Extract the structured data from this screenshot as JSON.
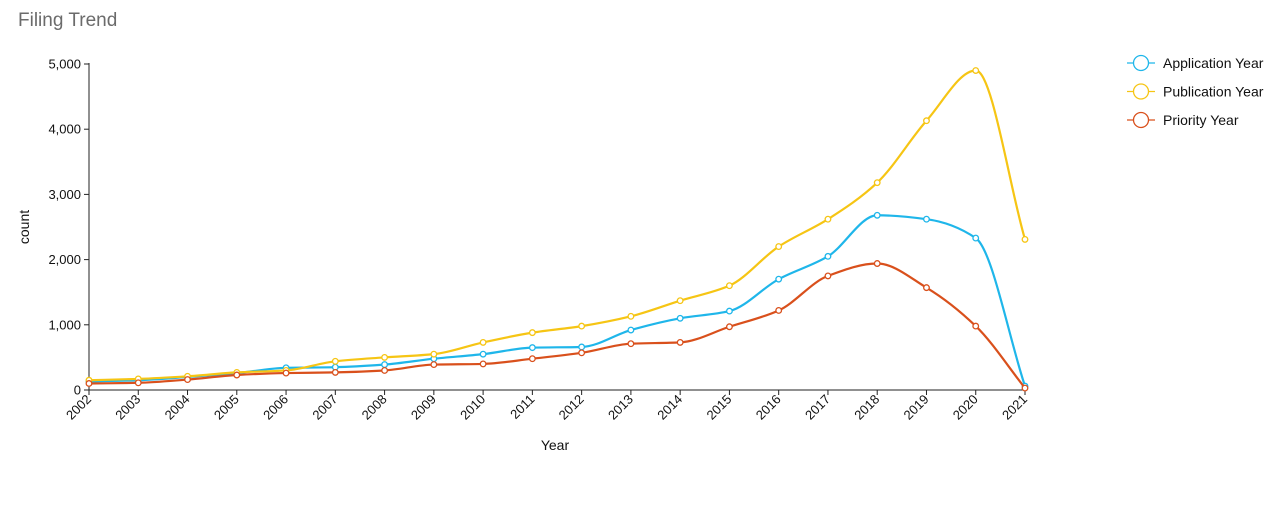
{
  "panel": {
    "title": "Filing Trend"
  },
  "chart_data": {
    "type": "line",
    "xlabel": "Year",
    "ylabel": "count",
    "ylim": [
      0,
      5000
    ],
    "yticks": [
      0,
      1000,
      2000,
      3000,
      4000,
      5000
    ],
    "ytick_labels": [
      "0",
      "1,000",
      "2,000",
      "3,000",
      "4,000",
      "5,000"
    ],
    "categories": [
      "2002",
      "2003",
      "2004",
      "2005",
      "2006",
      "2007",
      "2008",
      "2009",
      "2010",
      "2011",
      "2012",
      "2013",
      "2014",
      "2015",
      "2016",
      "2017",
      "2018",
      "2019",
      "2020",
      "2021"
    ],
    "legend_position": "top-right",
    "grid": false,
    "series": [
      {
        "name": "Application Year",
        "color": "#1fb6ea",
        "values": [
          130,
          150,
          200,
          260,
          340,
          350,
          390,
          480,
          550,
          650,
          660,
          920,
          1100,
          1210,
          1700,
          2050,
          2680,
          2620,
          2330,
          60
        ]
      },
      {
        "name": "Publication Year",
        "color": "#f6c514",
        "values": [
          150,
          170,
          210,
          270,
          300,
          440,
          500,
          550,
          730,
          880,
          980,
          1130,
          1370,
          1600,
          2200,
          2620,
          3180,
          4130,
          4900,
          2310
        ]
      },
      {
        "name": "Priority Year",
        "color": "#d9501c",
        "values": [
          100,
          110,
          160,
          230,
          260,
          270,
          300,
          390,
          400,
          480,
          570,
          710,
          730,
          970,
          1220,
          1750,
          1940,
          1570,
          980,
          30
        ]
      }
    ]
  }
}
